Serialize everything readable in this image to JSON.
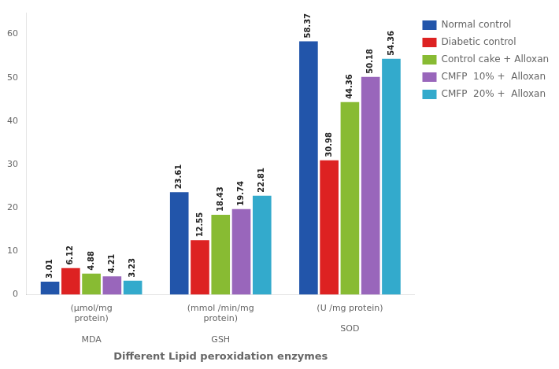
{
  "chart_data": {
    "type": "bar",
    "x_label": "Different Lipid peroxidation enzymes",
    "categories": [
      "(μmol/mg\nprotein)\n\nMDA",
      "(mmol /min/mg\nprotein)\n\nGSH",
      "(U /mg protein)\n\nSOD"
    ],
    "series": [
      {
        "name": "Normal control",
        "color": "#2255AA",
        "values": [
          3.01,
          23.61,
          58.37
        ]
      },
      {
        "name": "Diabetic control",
        "color": "#DD2222",
        "values": [
          6.12,
          12.55,
          30.98
        ]
      },
      {
        "name": "Control cake + Alloxan",
        "color": "#88BB33",
        "values": [
          4.88,
          18.43,
          44.36
        ]
      },
      {
        "name": "CMFP  10% +  Alloxan",
        "color": "#9966BB",
        "values": [
          4.21,
          19.74,
          50.18
        ]
      },
      {
        "name": "CMFP  20% +  Alloxan",
        "color": "#33AACC",
        "values": [
          3.23,
          22.81,
          54.36
        ]
      }
    ],
    "ylim": [
      0,
      65
    ],
    "yticks": [
      0,
      10,
      20,
      30,
      40,
      50,
      60
    ],
    "grid": false,
    "legend": "right",
    "data_labels": true
  }
}
